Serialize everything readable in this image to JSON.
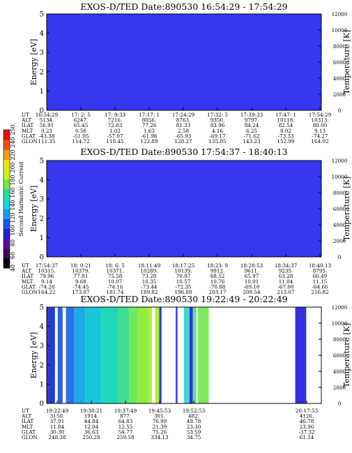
{
  "chart_data": [
    {
      "type": "heatmap",
      "title": "EXOS-D/TED   Date:890530   16:54:29 - 17:54:29",
      "ylabel": "Energy [eV]",
      "y2label": "Temperature [K]",
      "ylim": [
        0,
        5
      ],
      "y2lim": [
        0,
        12000
      ],
      "yticks": [
        "0",
        "1",
        "2",
        "3",
        "4",
        "5"
      ],
      "y2ticks": [
        "0",
        "2000",
        "4000",
        "6000",
        "8000",
        "10000",
        "12000"
      ],
      "background_color": "#3636ee",
      "bands": [],
      "table": {
        "row_labels": [
          "UT",
          "ALT",
          "ILAT",
          "MLT",
          "GLAT",
          "GLON"
        ],
        "columns": [
          [
            "16:54:29",
            "5134.",
            "56.91",
            "0.23",
            "-43.38",
            "111.35"
          ],
          [
            "17: 2: 5",
            "6247.",
            "65.45",
            "0.58",
            "-51.05",
            "114.72"
          ],
          [
            "17: 9:33",
            "7216.",
            "72.03",
            "1.02",
            "-57.07",
            "118.45"
          ],
          [
            "17:17: 1",
            "8056.",
            "77.26",
            "1.63",
            "-61.96",
            "122.88"
          ],
          [
            "17:24:29",
            "8763.",
            "81.33",
            "2.58",
            "-65.93",
            "128.27"
          ],
          [
            "17:32: 5",
            "9350.",
            "83.96",
            "4.16",
            "-69.17",
            "135.05"
          ],
          [
            "17:39:33",
            "9797.",
            "84.24",
            "6.25",
            "-71.62",
            "143.23"
          ],
          [
            "17:47: 1",
            "10118.",
            "82.54",
            "8.02",
            "-73.33",
            "152.99"
          ],
          [
            "17:54:29",
            "10313.",
            "80.00",
            "9.13",
            "-74.27",
            "164.02"
          ]
        ]
      }
    },
    {
      "type": "heatmap",
      "title": "EXOS-D/TED   Date:890530   17:54:37 - 18:40:13",
      "ylabel": "Energy [eV]",
      "y2label": "Temperature [K]",
      "ylim": [
        0,
        5
      ],
      "y2lim": [
        0,
        12000
      ],
      "yticks": [
        "0",
        "1",
        "2",
        "3",
        "4",
        "5"
      ],
      "y2ticks": [
        "0",
        "2000",
        "4000",
        "6000",
        "8000",
        "10000",
        "12000"
      ],
      "background_color": "#3636ee",
      "bands": [],
      "table": {
        "row_labels": [
          "UT",
          "ALT",
          "ILAT",
          "MLT",
          "GLAT",
          "GLON"
        ],
        "columns": [
          [
            "17:54:37",
            "10315.",
            "79.96",
            "9.14",
            "-74.28",
            "164.22"
          ],
          [
            "18: 0:21",
            "10379.",
            "77.81",
            "9.68",
            "-74.45",
            "173.07"
          ],
          [
            "18: 6: 5",
            "10371.",
            "75.58",
            "10.07",
            "-74.16",
            "181.74"
          ],
          [
            "18:11:49",
            "10289.",
            "73.28",
            "10.35",
            "-73.44",
            "189.82"
          ],
          [
            "18:17:25",
            "10139.",
            "70.97",
            "10.57",
            "-72.35",
            "196.88"
          ],
          [
            "18:23: 9",
            "9912.",
            "68.52",
            "10.76",
            "-70.88",
            "203.17"
          ],
          [
            "18:28:53",
            "9611.",
            "65.97",
            "10.91",
            "-69.10",
            "208.54"
          ],
          [
            "18:34:37",
            "9235.",
            "63.28",
            "11.04",
            "-67.00",
            "213.07"
          ],
          [
            "18:40:13",
            "8795.",
            "60.49",
            "11.15",
            "-64.66",
            "216.82"
          ]
        ]
      }
    },
    {
      "type": "heatmap",
      "title": "EXOS-D/TED   Date:890530   19:22:49 - 20:22:49",
      "ylabel": "Energy [eV]",
      "y2label": "Temperature [K]",
      "ylim": [
        0,
        5
      ],
      "y2lim": [
        0,
        12000
      ],
      "yticks": [
        "0",
        "1",
        "2",
        "3",
        "4",
        "5"
      ],
      "y2ticks": [
        "0",
        "2000",
        "4000",
        "6000",
        "8000",
        "10000",
        "12000"
      ],
      "background_color": "#ffffff",
      "bands": [
        {
          "t0": 0.0,
          "t1": 0.01,
          "color": "#3232e0"
        },
        {
          "t0": 0.01,
          "t1": 0.03,
          "color": "#1e3fd0"
        },
        {
          "t0": 0.04,
          "t1": 0.058,
          "color": "#2f5fe8"
        },
        {
          "t0": 0.07,
          "t1": 0.1,
          "color": "#2a70e8"
        },
        {
          "t0": 0.1,
          "t1": 0.14,
          "color": "#20a8e8"
        },
        {
          "t0": 0.14,
          "t1": 0.2,
          "color": "#18c8d8"
        },
        {
          "t0": 0.2,
          "t1": 0.26,
          "color": "#20d8b8"
        },
        {
          "t0": 0.26,
          "t1": 0.3,
          "color": "#40e090"
        },
        {
          "t0": 0.3,
          "t1": 0.33,
          "color": "#70e860"
        },
        {
          "t0": 0.33,
          "t1": 0.37,
          "color": "#90ec40"
        },
        {
          "t0": 0.37,
          "t1": 0.383,
          "color": "#b0f030"
        },
        {
          "t0": 0.395,
          "t1": 0.41,
          "color": "#a8f030"
        },
        {
          "t0": 0.41,
          "t1": 0.418,
          "color": "#3232e0"
        },
        {
          "t0": 0.47,
          "t1": 0.476,
          "color": "#3232e0"
        },
        {
          "t0": 0.5,
          "t1": 0.52,
          "color": "#40d8d0"
        },
        {
          "t0": 0.52,
          "t1": 0.532,
          "color": "#3232e0"
        },
        {
          "t0": 0.532,
          "t1": 0.545,
          "color": "#60e090"
        },
        {
          "t0": 0.55,
          "t1": 0.59,
          "color": "#80e860"
        },
        {
          "t0": 0.905,
          "t1": 0.945,
          "color": "#3232e0"
        }
      ],
      "table": {
        "row_labels": [
          "UT",
          "ALT",
          "ILAT",
          "MLT",
          "GLAT",
          "GLON"
        ],
        "columns": [
          [
            "19:22:49",
            "3150.",
            "37.91",
            "11.84",
            "30.30",
            "248.38"
          ],
          [
            "19:30:21",
            "1914.",
            "44.84",
            "12.04",
            "36.63",
            "250.28"
          ],
          [
            "19:37:49",
            "877.",
            "64.83",
            "12.55",
            "54.77",
            "259.58"
          ],
          [
            "19:45:53",
            "301.",
            "76.99",
            "21.39",
            "75.26",
            "334.13"
          ],
          [
            "19:52:53",
            "482.",
            "49.78",
            "23.30",
            "53.59",
            "34.75"
          ],
          [
            "20:17:53",
            "4126.",
            "46.78",
            "23.96",
            "-37.32",
            "61.54"
          ]
        ]
      }
    }
  ],
  "colorbar": {
    "label": "Second Harmonic Current",
    "ticks": [
      "40",
      "60",
      "80",
      "100",
      "120",
      "140",
      "160",
      "180",
      "200",
      "220",
      "240",
      "250"
    ],
    "colors": [
      "#000000",
      "#3a0a52",
      "#5a0ea0",
      "#2020d0",
      "#1a56e8",
      "#1aa0e8",
      "#10d8e0",
      "#20e0a0",
      "#70ea40",
      "#c8f020",
      "#f0e010",
      "#f0a010",
      "#f05010",
      "#e01010"
    ]
  }
}
